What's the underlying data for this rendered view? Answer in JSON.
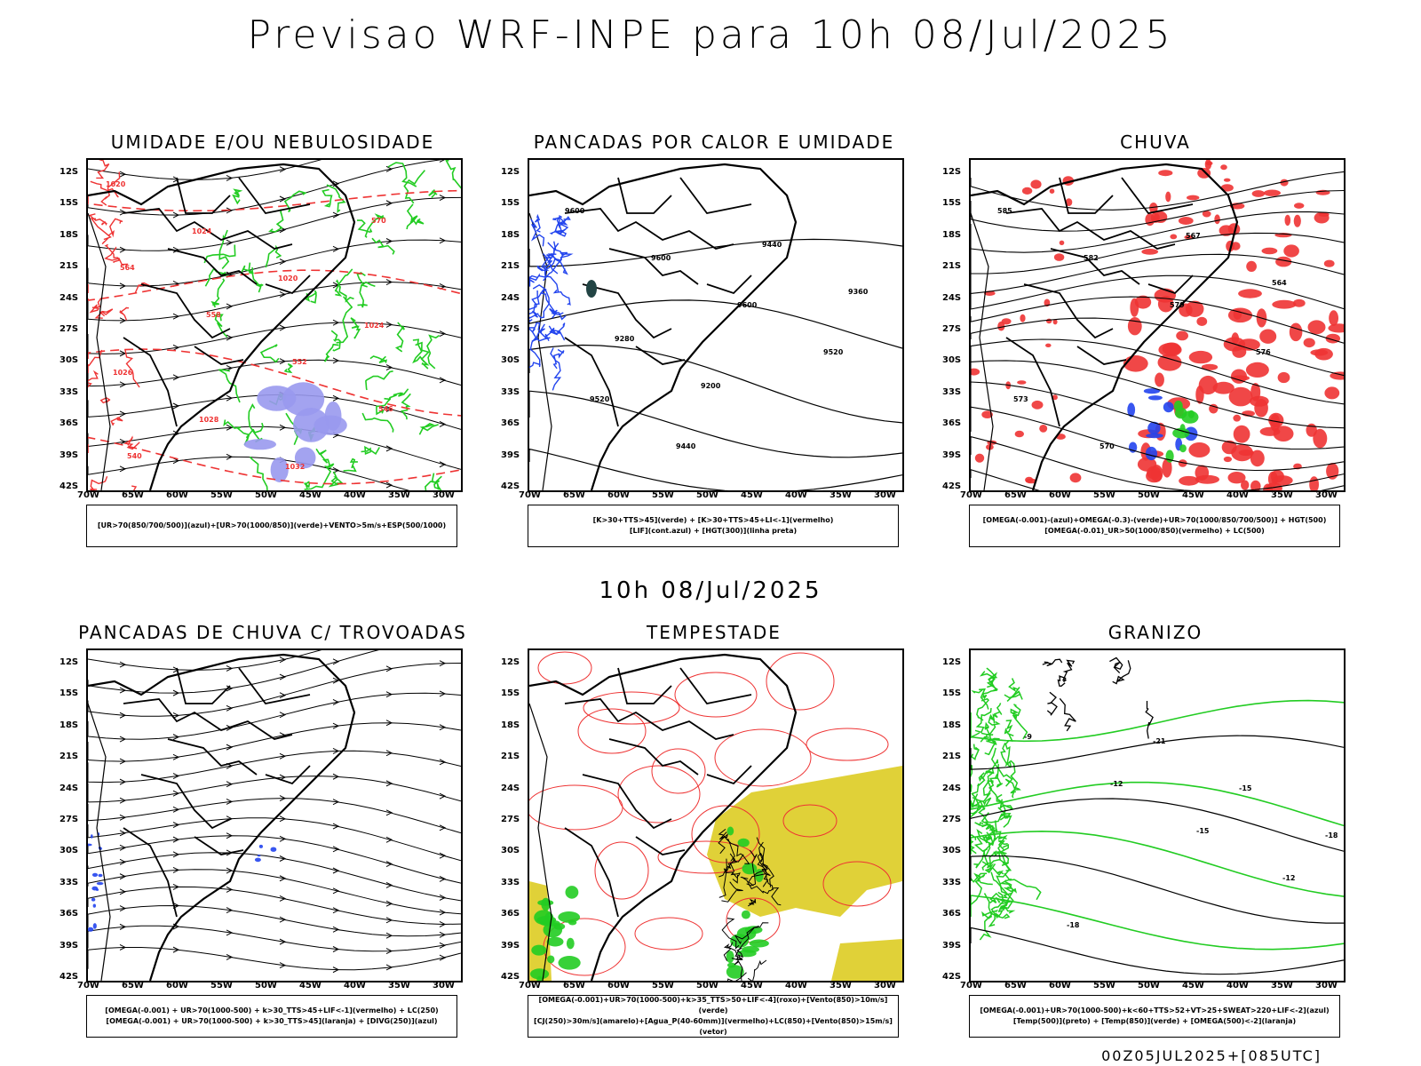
{
  "main_title": "Previsao WRF-INPE  para 10h 08/Jul/2025",
  "mid_title": "10h 08/Jul/2025",
  "footer_stamp": "00Z05JUL2025+[085UTC]",
  "lat_labels": [
    "12S",
    "15S",
    "18S",
    "21S",
    "24S",
    "27S",
    "30S",
    "33S",
    "36S",
    "39S",
    "42S"
  ],
  "lon_labels": [
    "70W",
    "65W",
    "60W",
    "55W",
    "50W",
    "45W",
    "40W",
    "35W",
    "30W"
  ],
  "panels": [
    {
      "title": "UMIDADE E/OU NEBULOSIDADE",
      "legend": [
        "[UR>70(850/700/500)](azul)+[UR>70(1000/850)](verde)+VENTO>5m/s+ESP(500/1000)"
      ]
    },
    {
      "title": "PANCADAS POR CALOR E UMIDADE",
      "legend": [
        "[K>30+TTS>45](verde)  +  [K>30+TTS>45+LI<-1](vermelho)",
        "[LIF](cont.azul)  +  [HGT(300)](linha preta)"
      ]
    },
    {
      "title": "CHUVA",
      "legend": [
        "[OMEGA(-0.001)-(azul)+OMEGA(-0.3)-(verde)+UR>70(1000/850/700/500)]  +  HGT(500)",
        "[OMEGA(-0.01)_UR>50(1000/850)(vermelho)  +  LC(500)"
      ]
    },
    {
      "title": "PANCADAS DE CHUVA C/ TROVOADAS",
      "legend": [
        "[OMEGA(-0.001)  +  UR>70(1000-500)  +  k>30_TTS>45+LIF<-1](vermelho)  +  LC(250)",
        "[OMEGA(-0.001)  +  UR>70(1000-500)  +  k>30_TTS>45](laranja)  +  [DIVG(250)](azul)"
      ]
    },
    {
      "title": "TEMPESTADE",
      "legend": [
        "[OMEGA(-0.001)+UR>70(1000-500)+k>35_TTS>50+LIF<-4](roxo)+[Vento(850)>10m/s](verde)",
        "[CJ(250)>30m/s](amarelo)+[Agua_P(40-60mm)](vermelho)+LC(850)+[Vento(850)>15m/s](vetor)"
      ]
    },
    {
      "title": "GRANIZO",
      "legend": [
        "[OMEGA(-0.001)+UR>70(1000-500)+k<60+TTS>52+VT>25+SWEAT>220+LIF<-2](azul)",
        "[Temp(500)](preto)  +  [Temp(850)](verde)  +  [OMEGA(500)<-2](laranja)"
      ]
    }
  ],
  "contour_labels": {
    "panel1": [
      "1020",
      "1024",
      "1020",
      "1024",
      "1026",
      "1028",
      "1032",
      "570",
      "564",
      "558",
      "552",
      "546",
      "540"
    ],
    "panel2": [
      "9600",
      "9600",
      "9600",
      "9520",
      "9520",
      "9440",
      "9440",
      "9360",
      "9280",
      "9200"
    ],
    "panel3": [
      "585",
      "582",
      "579",
      "576",
      "573",
      "570",
      "567",
      "564"
    ],
    "panel6": [
      "-9",
      "-12",
      "-15",
      "-12",
      "-18",
      "-21",
      "-15",
      "-18"
    ]
  },
  "colors": {
    "green": "#22cc22",
    "red": "#ee3333",
    "blue": "#2244ee",
    "lavender": "#9999ee",
    "yellow": "#ddcc22",
    "black": "#000000"
  }
}
